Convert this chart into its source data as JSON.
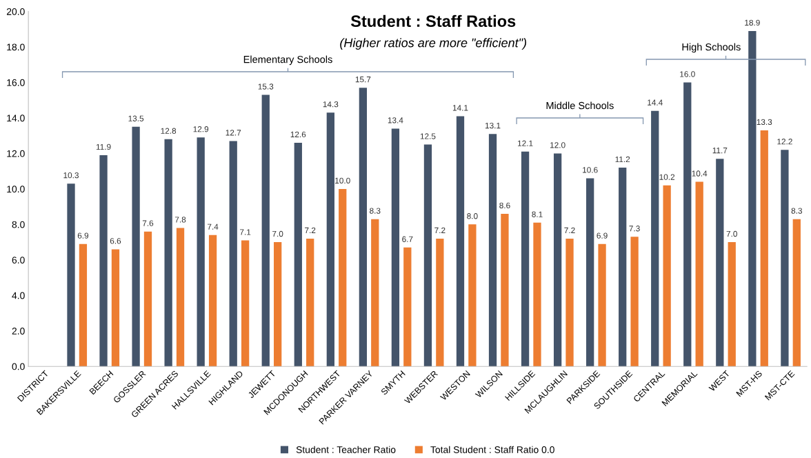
{
  "chart_data": {
    "type": "bar",
    "title": "Student : Staff Ratios",
    "subtitle": "(Higher ratios are more \"efficient\")",
    "categories": [
      "DISTRICT",
      "BAKERSVILLE",
      "BEECH",
      "GOSSLER",
      "GREEN ACRES",
      "HALLSVILLE",
      "HIGHLAND",
      "JEWETT",
      "MCDONOUGH",
      "NORTHWEST",
      "PARKER VARNEY",
      "SMYTH",
      "WEBSTER",
      "WESTON",
      "WILSON",
      "HILLSIDE",
      "MCLAUGHLIN",
      "PARKSIDE",
      "SOUTHSIDE",
      "CENTRAL",
      "MEMORIAL",
      "WEST",
      "MST-HS",
      "MST-CTE"
    ],
    "series": [
      {
        "name": "Student : Teacher Ratio",
        "color": "#44546a",
        "values": [
          null,
          10.3,
          11.9,
          13.5,
          12.8,
          12.9,
          12.7,
          15.3,
          12.6,
          14.3,
          15.7,
          13.4,
          12.5,
          14.1,
          13.1,
          12.1,
          12.0,
          10.6,
          11.2,
          14.4,
          16.0,
          11.7,
          18.9,
          12.2
        ],
        "value_labels": [
          null,
          "10.3",
          "11.9",
          "13.5",
          "12.8",
          "12.9",
          "12.7",
          "15.3",
          "12.6",
          "14.3",
          "15.7",
          "13.4",
          "12.5",
          "14.1",
          "13.1",
          "12.1",
          "12.0",
          "10.6",
          "11.2",
          "14.4",
          "16.0",
          "11.7",
          "18.9",
          "12.2"
        ]
      },
      {
        "name": "Total Student : Staff Ratio 0.0",
        "color": "#ed7d31",
        "values": [
          null,
          6.9,
          6.6,
          7.6,
          7.8,
          7.4,
          7.1,
          7.0,
          7.2,
          10.0,
          8.3,
          6.7,
          7.2,
          8.0,
          8.6,
          8.1,
          7.2,
          6.9,
          7.3,
          10.2,
          10.4,
          7.0,
          13.3,
          8.3
        ],
        "value_labels": [
          null,
          "6.9",
          "6.6",
          "7.6",
          "7.8",
          "7.4",
          "7.1",
          "7.0",
          "7.2",
          "10.0",
          "8.3",
          "6.7",
          "7.2",
          "8.0",
          "8.6",
          "8.1",
          "7.2",
          "6.9",
          "7.3",
          "10.2",
          "10.4",
          "7.0",
          "13.3",
          "8.3"
        ]
      }
    ],
    "ylim": [
      0,
      20
    ],
    "yticks": [
      {
        "value": 0,
        "label": "0.0"
      },
      {
        "value": 2,
        "label": "2.0"
      },
      {
        "value": 4,
        "label": "4.0"
      },
      {
        "value": 6,
        "label": "6.0"
      },
      {
        "value": 8,
        "label": "8.0"
      },
      {
        "value": 10,
        "label": "10.0"
      },
      {
        "value": 12,
        "label": "12.0"
      },
      {
        "value": 14,
        "label": "14.0"
      },
      {
        "value": 16,
        "label": "16.0"
      },
      {
        "value": 18,
        "label": "18.0"
      },
      {
        "value": 20,
        "label": "20.0"
      }
    ],
    "annotations": [
      "Elementary Schools",
      "Middle Schools",
      "High Schools"
    ],
    "grid": false,
    "legend": "bottom"
  }
}
